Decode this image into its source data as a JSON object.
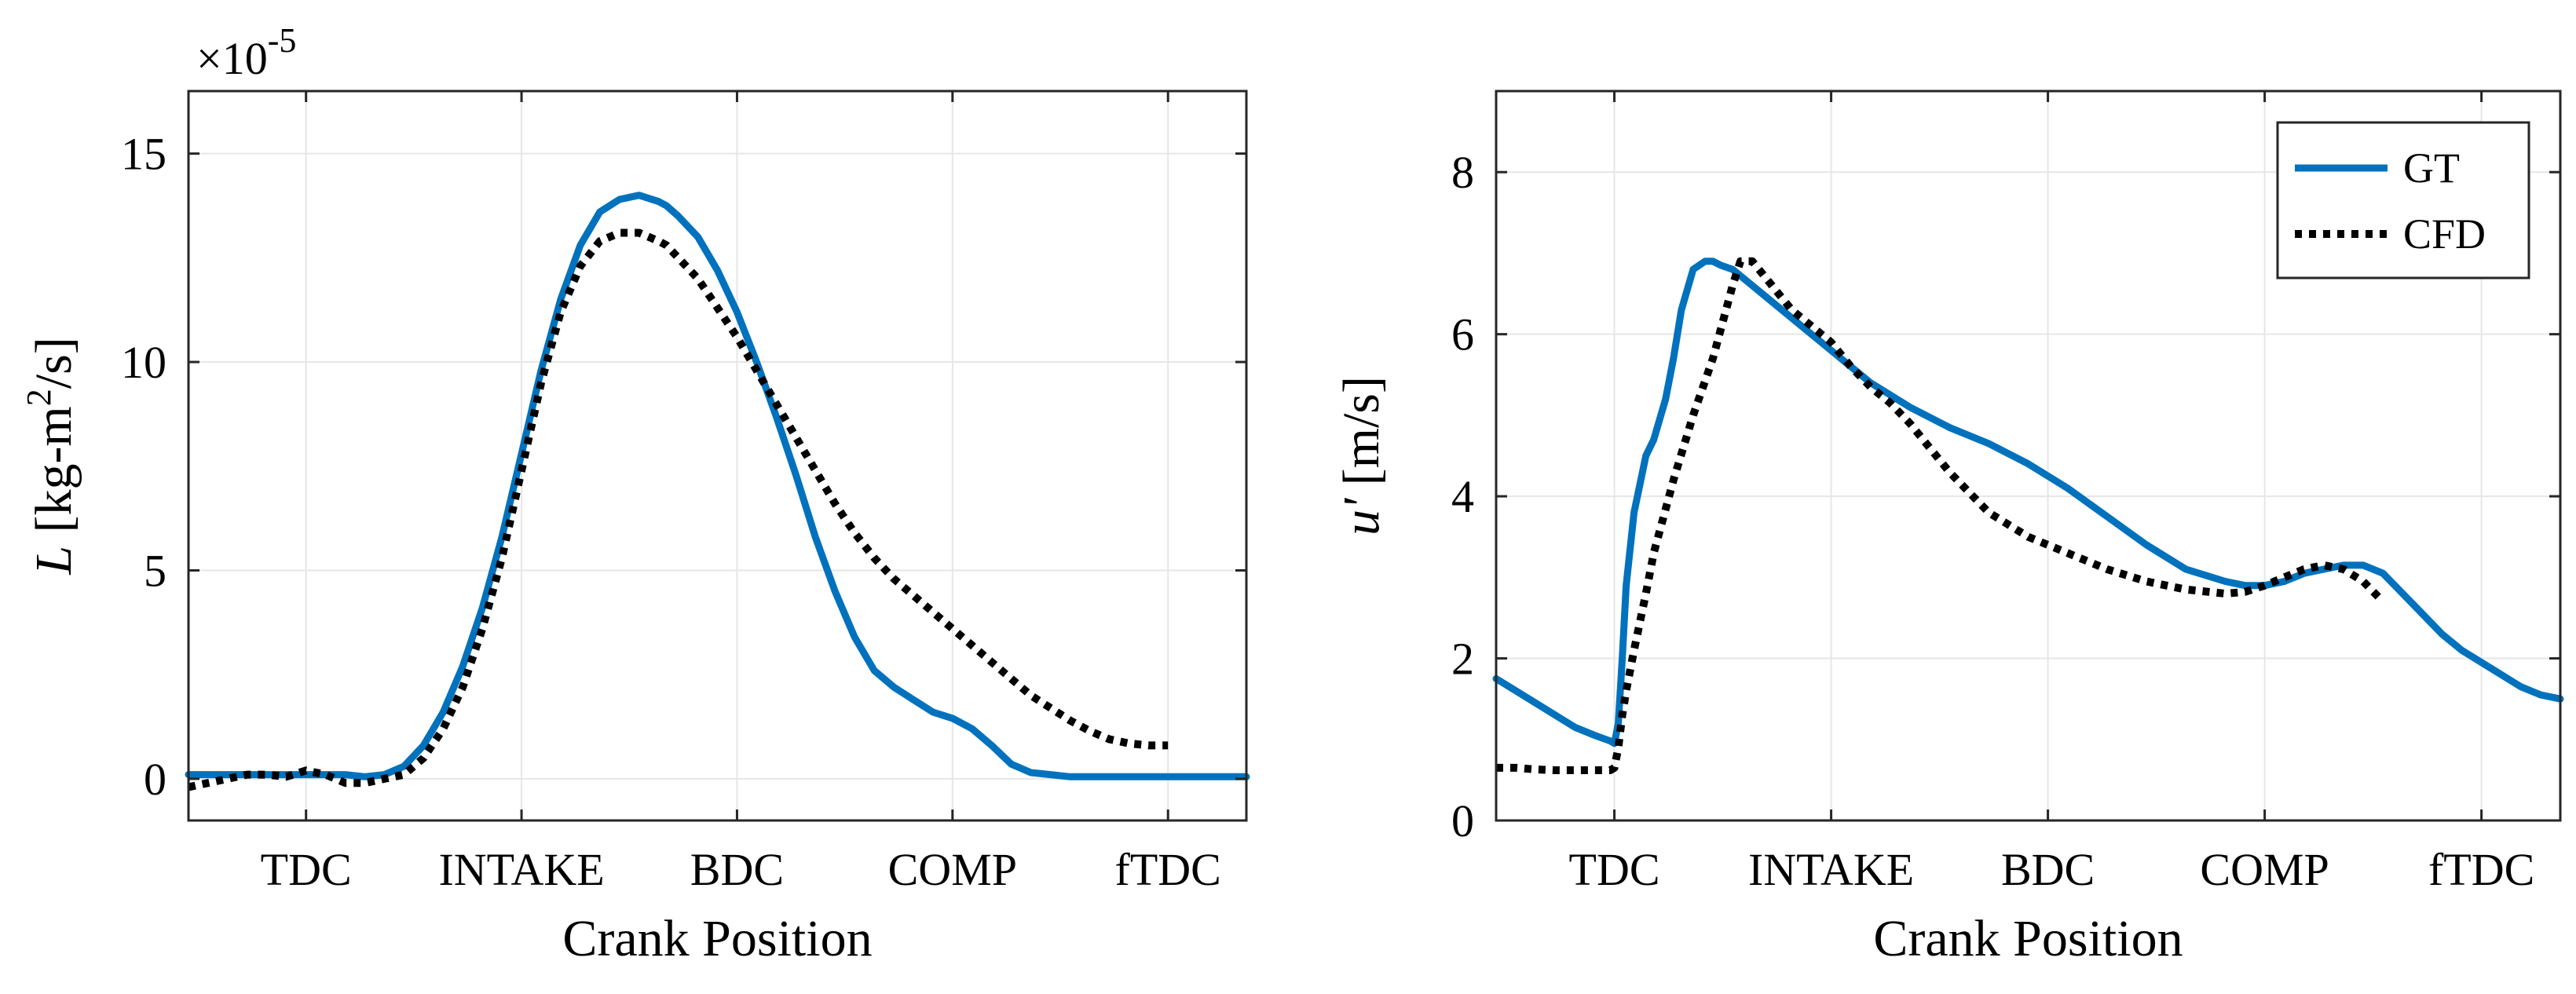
{
  "colors": {
    "gt": "#0072BD",
    "cfd": "#000000",
    "grid": "#e6e6e6",
    "axis": "#262626"
  },
  "chart_data": [
    {
      "type": "line",
      "title": "",
      "xlabel": "Crank Position",
      "ylabel_italic": "L",
      "ylabel_rest": " [kg-m",
      "ylabel_sup": "2",
      "ylabel_end": "/s]",
      "y_exponent_base": "×10",
      "y_exponent_power": "-5",
      "xlim": [
        -5,
        265
      ],
      "ylim": [
        -1,
        16.5
      ],
      "grid": true,
      "x_ticks": [
        {
          "value": 25,
          "label": "TDC"
        },
        {
          "value": 80,
          "label": "INTAKE"
        },
        {
          "value": 135,
          "label": "BDC"
        },
        {
          "value": 190,
          "label": "COMP"
        },
        {
          "value": 245,
          "label": "fTDC"
        }
      ],
      "y_ticks": [
        {
          "value": 0,
          "label": "0"
        },
        {
          "value": 5,
          "label": "5"
        },
        {
          "value": 10,
          "label": "10"
        },
        {
          "value": 15,
          "label": "15"
        }
      ],
      "series": [
        {
          "name": "GT",
          "style": "solid",
          "x": [
            -5,
            10,
            20,
            25,
            30,
            35,
            40,
            45,
            50,
            55,
            60,
            65,
            70,
            75,
            80,
            85,
            90,
            95,
            100,
            105,
            110,
            115,
            117,
            120,
            125,
            130,
            135,
            140,
            145,
            150,
            155,
            160,
            165,
            170,
            175,
            180,
            185,
            190,
            195,
            200,
            205,
            210,
            215,
            220,
            225,
            230,
            235,
            240,
            245,
            250,
            255,
            265
          ],
          "y": [
            0.1,
            0.1,
            0.1,
            0.1,
            0.1,
            0.1,
            0.05,
            0.1,
            0.3,
            0.8,
            1.6,
            2.7,
            4.1,
            5.8,
            7.8,
            9.8,
            11.5,
            12.8,
            13.6,
            13.9,
            14.0,
            13.85,
            13.75,
            13.5,
            13.0,
            12.2,
            11.2,
            10.0,
            8.7,
            7.3,
            5.8,
            4.5,
            3.4,
            2.6,
            2.2,
            1.9,
            1.6,
            1.45,
            1.2,
            0.8,
            0.35,
            0.15,
            0.1,
            0.05,
            0.05,
            0.05,
            0.05,
            0.05,
            0.05,
            0.05,
            0.05,
            0.05
          ]
        },
        {
          "name": "CFD",
          "style": "dotted",
          "x": [
            -5,
            0,
            5,
            10,
            15,
            20,
            25,
            30,
            35,
            40,
            45,
            50,
            55,
            60,
            65,
            70,
            75,
            80,
            85,
            90,
            95,
            100,
            105,
            110,
            115,
            117,
            120,
            125,
            130,
            135,
            140,
            145,
            150,
            155,
            160,
            165,
            170,
            175,
            180,
            185,
            190,
            195,
            200,
            205,
            210,
            215,
            220,
            225,
            230,
            235,
            240,
            245
          ],
          "y": [
            -0.2,
            -0.1,
            0.0,
            0.1,
            0.1,
            0.05,
            0.2,
            0.1,
            -0.1,
            -0.1,
            0.0,
            0.1,
            0.5,
            1.2,
            2.2,
            3.6,
            5.3,
            7.4,
            9.5,
            11.2,
            12.3,
            12.9,
            13.1,
            13.1,
            12.9,
            12.8,
            12.5,
            12.0,
            11.3,
            10.6,
            9.8,
            9.0,
            8.2,
            7.4,
            6.6,
            5.9,
            5.3,
            4.8,
            4.4,
            4.0,
            3.6,
            3.2,
            2.8,
            2.4,
            2.0,
            1.7,
            1.4,
            1.15,
            0.95,
            0.85,
            0.8,
            0.8
          ]
        }
      ]
    },
    {
      "type": "line",
      "title": "",
      "xlabel": "Crank Position",
      "ylabel_italic": "u'",
      "ylabel_rest": " [m/s]",
      "xlim": [
        -5,
        265
      ],
      "ylim": [
        0,
        9
      ],
      "grid": true,
      "legend_position": "top-right",
      "x_ticks": [
        {
          "value": 25,
          "label": "TDC"
        },
        {
          "value": 80,
          "label": "INTAKE"
        },
        {
          "value": 135,
          "label": "BDC"
        },
        {
          "value": 190,
          "label": "COMP"
        },
        {
          "value": 245,
          "label": "fTDC"
        }
      ],
      "y_ticks": [
        {
          "value": 0,
          "label": "0"
        },
        {
          "value": 2,
          "label": "2"
        },
        {
          "value": 4,
          "label": "4"
        },
        {
          "value": 6,
          "label": "6"
        },
        {
          "value": 8,
          "label": "8"
        }
      ],
      "series": [
        {
          "name": "GT",
          "style": "solid",
          "x": [
            -5,
            0,
            5,
            10,
            15,
            20,
            24,
            25,
            26,
            27,
            28,
            30,
            33,
            35,
            38,
            40,
            42,
            45,
            48,
            50,
            52,
            55,
            60,
            65,
            70,
            75,
            80,
            85,
            90,
            95,
            100,
            110,
            120,
            130,
            140,
            150,
            160,
            170,
            180,
            185,
            190,
            195,
            200,
            205,
            210,
            215,
            220,
            225,
            230,
            235,
            240,
            245,
            250,
            255,
            260,
            265
          ],
          "y": [
            1.75,
            1.6,
            1.45,
            1.3,
            1.15,
            1.05,
            0.98,
            0.95,
            1.2,
            2.0,
            2.9,
            3.8,
            4.5,
            4.7,
            5.2,
            5.7,
            6.3,
            6.8,
            6.9,
            6.9,
            6.85,
            6.8,
            6.6,
            6.4,
            6.2,
            6.0,
            5.8,
            5.6,
            5.4,
            5.25,
            5.1,
            4.85,
            4.65,
            4.4,
            4.1,
            3.75,
            3.4,
            3.1,
            2.95,
            2.9,
            2.9,
            2.95,
            3.05,
            3.1,
            3.15,
            3.15,
            3.05,
            2.8,
            2.55,
            2.3,
            2.1,
            1.95,
            1.8,
            1.65,
            1.55,
            1.5
          ]
        },
        {
          "name": "CFD",
          "style": "dotted",
          "x": [
            -5,
            0,
            5,
            10,
            15,
            20,
            24,
            25,
            26,
            27,
            28,
            30,
            33,
            35,
            40,
            45,
            50,
            55,
            57,
            60,
            65,
            70,
            75,
            80,
            85,
            90,
            95,
            100,
            105,
            110,
            115,
            120,
            130,
            140,
            150,
            160,
            170,
            180,
            185,
            190,
            195,
            200,
            205,
            210,
            215,
            220
          ],
          "y": [
            0.65,
            0.65,
            0.63,
            0.62,
            0.62,
            0.62,
            0.62,
            0.65,
            0.9,
            1.3,
            1.6,
            2.1,
            2.8,
            3.3,
            4.2,
            5.0,
            5.7,
            6.6,
            6.9,
            6.9,
            6.6,
            6.3,
            6.1,
            5.9,
            5.6,
            5.35,
            5.15,
            4.9,
            4.6,
            4.3,
            4.05,
            3.8,
            3.5,
            3.3,
            3.1,
            2.95,
            2.85,
            2.8,
            2.82,
            2.9,
            3.0,
            3.1,
            3.15,
            3.1,
            2.95,
            2.7
          ]
        }
      ]
    }
  ]
}
